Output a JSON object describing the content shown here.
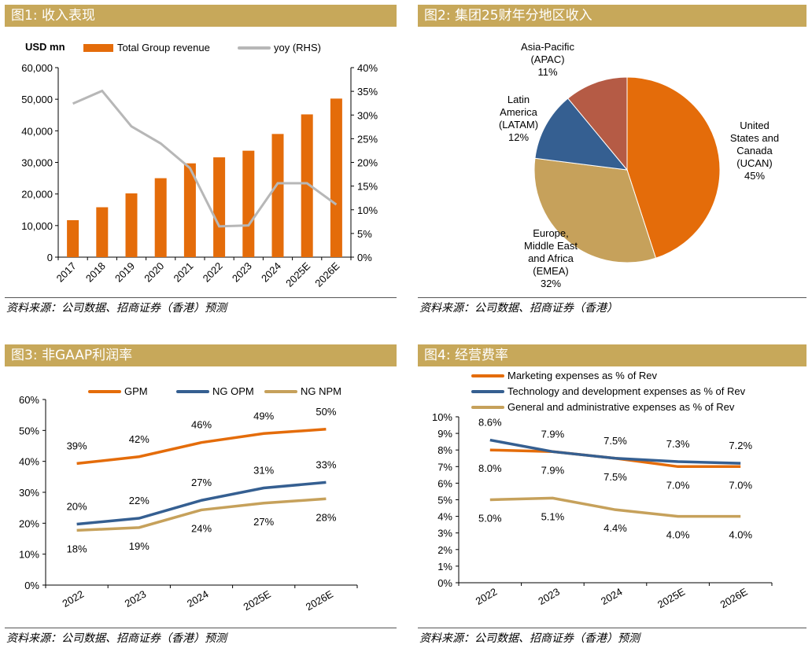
{
  "panels": [
    {
      "title": "图1:  收入表现",
      "source": "资料来源：公司数据、招商证券（香港）预测"
    },
    {
      "title": "图2:  集团25财年分地区收入",
      "source": "资料来源：公司数据、招商证券（香港）"
    },
    {
      "title": "图3:  非GAAP利润率",
      "source": "资料来源：公司数据、招商证券（香港）预测"
    },
    {
      "title": "图4:  经营费率",
      "source": "资料来源：公司数据、招商证券（香港）预测"
    }
  ],
  "colors": {
    "orange": "#e46c0a",
    "grey": "#b7b7b7",
    "blue": "#355f91",
    "tan": "#c6a15b",
    "brick": "#b55b45",
    "header": "#c7a85a"
  },
  "chart_data": [
    {
      "type": "bar",
      "unit_label": "USD mn",
      "categories": [
        "2017",
        "2018",
        "2019",
        "2020",
        "2021",
        "2022",
        "2023",
        "2024",
        "2025E",
        "2026E"
      ],
      "series": [
        {
          "name": "Total Group revenue",
          "axis": "left",
          "values": [
            11700,
            15800,
            20200,
            25000,
            29700,
            31600,
            33700,
            39000,
            45200,
            50200
          ]
        },
        {
          "name": "yoy (RHS)",
          "axis": "right",
          "type": "line",
          "values": [
            32.4,
            35.1,
            27.6,
            24.0,
            18.8,
            6.5,
            6.7,
            15.6,
            15.6,
            11.1
          ]
        }
      ],
      "ylim": [
        0,
        60000
      ],
      "yticks": [
        "0",
        "10,000",
        "20,000",
        "30,000",
        "40,000",
        "50,000",
        "60,000"
      ],
      "y2lim": [
        0,
        40
      ],
      "y2ticks": [
        "0%",
        "5%",
        "10%",
        "15%",
        "20%",
        "25%",
        "30%",
        "35%",
        "40%"
      ]
    },
    {
      "type": "pie",
      "slices": [
        {
          "label": "United States and Canada (UCAN)",
          "lines": [
            "United",
            "States and",
            "Canada",
            "(UCAN)",
            "45%"
          ],
          "value": 45
        },
        {
          "label": "Europe, Middle East and Africa (EMEA)",
          "lines": [
            "Europe,",
            "Middle East",
            "and Africa",
            "(EMEA)",
            "32%"
          ],
          "value": 32
        },
        {
          "label": "Latin America (LATAM)",
          "lines": [
            "Latin",
            "America",
            "(LATAM)",
            "12%"
          ],
          "value": 12
        },
        {
          "label": "Asia-Pacific (APAC)",
          "lines": [
            "Asia-Pacific",
            "(APAC)",
            "11%"
          ],
          "value": 11
        }
      ]
    },
    {
      "type": "line",
      "categories": [
        "2022",
        "2023",
        "2024",
        "2025E",
        "2026E"
      ],
      "series": [
        {
          "name": "GPM",
          "values": [
            39.3,
            41.5,
            46.1,
            49.0,
            50.4
          ],
          "labels": [
            "39%",
            "42%",
            "46%",
            "49%",
            "50%"
          ],
          "label_pos": "above"
        },
        {
          "name": "NG OPM",
          "values": [
            19.7,
            21.6,
            27.4,
            31.4,
            33.2
          ],
          "labels": [
            "20%",
            "22%",
            "27%",
            "31%",
            "33%"
          ],
          "label_pos": "above"
        },
        {
          "name": "NG NPM",
          "values": [
            17.7,
            18.6,
            24.3,
            26.5,
            27.9
          ],
          "labels": [
            "18%",
            "19%",
            "24%",
            "27%",
            "28%"
          ],
          "label_pos": "below"
        }
      ],
      "ylim": [
        0,
        60
      ],
      "yticks": [
        "0%",
        "10%",
        "20%",
        "30%",
        "40%",
        "50%",
        "60%"
      ]
    },
    {
      "type": "line",
      "categories": [
        "2022",
        "2023",
        "2024",
        "2025E",
        "2026E"
      ],
      "series": [
        {
          "name": "Marketing expenses as % of Rev",
          "values": [
            8.0,
            7.9,
            7.5,
            7.0,
            7.0
          ],
          "labels": [
            "8.0%",
            "7.9%",
            "7.5%",
            "7.0%",
            "7.0%"
          ],
          "label_pos": "below"
        },
        {
          "name": "Technology and development expenses as % of Rev",
          "values": [
            8.6,
            7.9,
            7.5,
            7.3,
            7.2
          ],
          "labels": [
            "8.6%",
            "7.9%",
            "7.5%",
            "7.3%",
            "7.2%"
          ],
          "label_pos": "above"
        },
        {
          "name": "General and administrative expenses as % of Rev",
          "values": [
            5.0,
            5.1,
            4.4,
            4.0,
            4.0
          ],
          "labels": [
            "5.0%",
            "5.1%",
            "4.4%",
            "4.0%",
            "4.0%"
          ],
          "label_pos": "below"
        }
      ],
      "ylim": [
        0,
        10
      ],
      "yticks": [
        "0%",
        "1%",
        "2%",
        "3%",
        "4%",
        "5%",
        "6%",
        "7%",
        "8%",
        "9%",
        "10%"
      ]
    }
  ]
}
